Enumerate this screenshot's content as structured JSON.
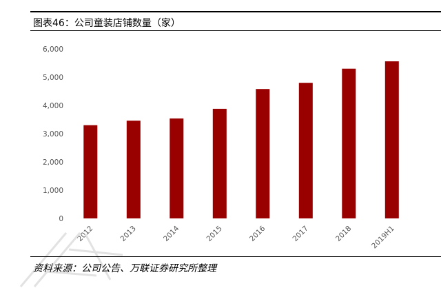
{
  "title": "图表46：公司童装店铺数量（家）",
  "source": "资料来源：公司公告、万联证券研究所整理",
  "colors": {
    "bar": "#990000",
    "rule": "#000000",
    "tick_text": "#555555"
  },
  "chart_data": {
    "type": "bar",
    "title": "图表46：公司童装店铺数量（家）",
    "categories": [
      "2012",
      "2013",
      "2014",
      "2015",
      "2016",
      "2017",
      "2018",
      "2019H1"
    ],
    "values": [
      3300,
      3460,
      3540,
      3880,
      4580,
      4800,
      5300,
      5560
    ],
    "ylim": [
      0,
      6000
    ],
    "yticks": [
      0,
      1000,
      2000,
      3000,
      4000,
      5000,
      6000
    ],
    "ytick_labels": [
      "0",
      "1,000",
      "2,000",
      "3,000",
      "4,000",
      "5,000",
      "6,000"
    ],
    "grid": false,
    "legend": "none"
  }
}
